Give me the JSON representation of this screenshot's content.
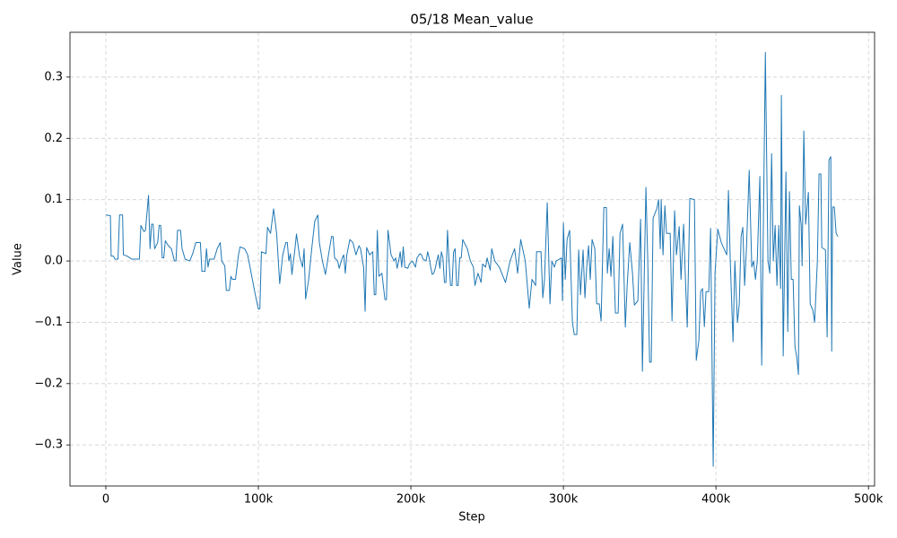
{
  "chart_data": {
    "type": "line",
    "title": "05/18  Mean_value",
    "x_label": "Step",
    "y_label": "Value",
    "xlim": [
      -23500,
      504000
    ],
    "ylim": [
      -0.367,
      0.373
    ],
    "xticks": [
      {
        "value": 0,
        "label": "0"
      },
      {
        "value": 100000,
        "label": "100k"
      },
      {
        "value": 200000,
        "label": "200k"
      },
      {
        "value": 300000,
        "label": "300k"
      },
      {
        "value": 400000,
        "label": "400k"
      },
      {
        "value": 500000,
        "label": "500k"
      }
    ],
    "yticks": [
      {
        "value": -0.3,
        "label": "−0.3"
      },
      {
        "value": -0.2,
        "label": "−0.2"
      },
      {
        "value": -0.1,
        "label": "−0.1"
      },
      {
        "value": 0,
        "label": "0.0"
      },
      0.1,
      0.2,
      0.3
    ],
    "grid": true,
    "x": [
      0,
      3000,
      3500,
      5000,
      6000,
      8000,
      9000,
      11000,
      11500,
      14000,
      17000,
      22000,
      23000,
      25000,
      26000,
      28000,
      29000,
      30000,
      31000,
      32000,
      34000,
      35000,
      36000,
      37000,
      38000,
      39000,
      41000,
      43000,
      45000,
      46000,
      47000,
      49000,
      50000,
      52000,
      55000,
      57000,
      59000,
      62000,
      63000,
      65000,
      66000,
      67000,
      68000,
      71000,
      73000,
      75000,
      76000,
      78000,
      79000,
      81000,
      82000,
      83000,
      85000,
      87000,
      88000,
      91000,
      93000,
      98000,
      100000,
      101000,
      102000,
      105000,
      106000,
      108000,
      110000,
      112000,
      114000,
      116000,
      118000,
      119000,
      120000,
      121000,
      122000,
      124000,
      125000,
      127000,
      129000,
      130000,
      131000,
      133000,
      135000,
      137000,
      139000,
      140000,
      142000,
      144000,
      146000,
      148000,
      149000,
      150000,
      152000,
      153000,
      155000,
      156000,
      157000,
      158000,
      160000,
      162000,
      164000,
      166000,
      167000,
      169000,
      170000,
      171000,
      173000,
      175000,
      176000,
      177000,
      178000,
      179000,
      181000,
      183000,
      184000,
      185000,
      187000,
      189000,
      190000,
      191000,
      192000,
      193000,
      194000,
      195000,
      196000,
      198000,
      199000,
      201000,
      203000,
      204000,
      206000,
      207000,
      208000,
      210000,
      211000,
      212000,
      213000,
      214000,
      215000,
      216000,
      217000,
      218000,
      219000,
      220000,
      221000,
      222000,
      223000,
      224000,
      225000,
      226000,
      227000,
      228000,
      229000,
      230000,
      231000,
      232000,
      233000,
      234000,
      235000,
      237000,
      239000,
      241000,
      242000,
      244000,
      246000,
      247000,
      249000,
      250000,
      252000,
      253000,
      255000,
      258000,
      262000,
      265000,
      268000,
      270000,
      272000,
      275000,
      277600,
      279400,
      281800,
      282400,
      285300,
      286500,
      287600,
      289400,
      291200,
      292400,
      294100,
      295300,
      298800,
      299400,
      300000,
      301200,
      302400,
      304100,
      305900,
      307100,
      308800,
      310000,
      311200,
      312900,
      314100,
      315300,
      316500,
      317600,
      318800,
      320600,
      321800,
      323500,
      324700,
      326500,
      328200,
      328800,
      330000,
      331200,
      332400,
      334100,
      335900,
      337100,
      338800,
      340600,
      341800,
      343500,
      345300,
      346500,
      348800,
      350600,
      351800,
      354100,
      355300,
      356500,
      357600,
      358800,
      361200,
      362400,
      363500,
      364100,
      365300,
      366500,
      367600,
      370000,
      371200,
      372900,
      374100,
      375900,
      377100,
      378800,
      380000,
      381200,
      382900,
      385900,
      387100,
      388800,
      390000,
      391200,
      392400,
      393500,
      395300,
      396500,
      398200,
      399400,
      401200,
      403500,
      407100,
      408200,
      409400,
      411200,
      412400,
      414100,
      415300,
      416500,
      417600,
      418800,
      420000,
      421800,
      423500,
      424700,
      425900,
      427100,
      428800,
      430000,
      431200,
      432400,
      434100,
      435300,
      436500,
      437600,
      438800,
      440000,
      441200,
      442400,
      442900,
      444100,
      445900,
      447100,
      448200,
      449400,
      450600,
      451800,
      452900,
      454100,
      454700,
      455900,
      456500,
      457600,
      458800,
      460600,
      461800,
      463500,
      464700,
      466500,
      467600,
      468800,
      469400,
      470600,
      471800,
      472900,
      474100,
      475300,
      475900,
      476500,
      477600,
      478800,
      480000
    ],
    "series": [
      {
        "color": "#1f77b4",
        "values": [
          0.075,
          0.074,
          0.008,
          0.008,
          0.003,
          0.003,
          0.075,
          0.075,
          0.01,
          0.008,
          0.003,
          0.003,
          0.058,
          0.048,
          0.05,
          0.107,
          0.02,
          0.06,
          0.06,
          0.02,
          0.03,
          0.058,
          0.058,
          0.005,
          0.005,
          0.033,
          0.025,
          0.02,
          0.0,
          0.0,
          0.05,
          0.05,
          0.02,
          0.003,
          0.0,
          0.012,
          0.03,
          0.03,
          -0.017,
          -0.017,
          0.02,
          -0.01,
          0.003,
          0.003,
          0.02,
          0.03,
          0.0,
          -0.008,
          -0.048,
          -0.048,
          -0.025,
          -0.03,
          -0.03,
          0.01,
          0.023,
          0.02,
          0.01,
          -0.055,
          -0.078,
          -0.078,
          0.015,
          0.012,
          0.055,
          0.045,
          0.085,
          0.045,
          -0.037,
          0.01,
          0.03,
          0.03,
          0.0,
          0.012,
          -0.022,
          0.02,
          0.044,
          0.008,
          -0.01,
          0.02,
          -0.062,
          -0.03,
          0.02,
          0.065,
          0.075,
          0.03,
          0.0,
          -0.022,
          0.01,
          0.04,
          0.04,
          0.005,
          0.0,
          -0.012,
          0.005,
          0.01,
          -0.02,
          0.01,
          0.035,
          0.03,
          0.01,
          0.025,
          0.02,
          -0.01,
          -0.082,
          0.022,
          0.01,
          0.015,
          -0.055,
          -0.055,
          0.05,
          -0.025,
          -0.02,
          -0.063,
          -0.063,
          0.05,
          0.01,
          0.0,
          0.005,
          -0.012,
          0.0,
          0.015,
          -0.01,
          0.023,
          -0.01,
          -0.012,
          -0.005,
          0.0,
          -0.01,
          0.005,
          0.012,
          0.01,
          0.003,
          0.0,
          0.015,
          0.005,
          -0.01,
          -0.022,
          -0.02,
          -0.012,
          0.0,
          0.01,
          -0.012,
          0.015,
          0.005,
          -0.035,
          -0.035,
          0.05,
          0.0,
          -0.04,
          -0.04,
          0.015,
          0.02,
          -0.04,
          -0.04,
          0.005,
          0.005,
          0.035,
          0.03,
          0.02,
          0.0,
          -0.01,
          -0.04,
          -0.02,
          -0.035,
          -0.005,
          -0.01,
          0.005,
          -0.015,
          0.02,
          0.0,
          -0.01,
          -0.035,
          0.0,
          0.02,
          -0.02,
          0.035,
          0.0,
          -0.077,
          -0.03,
          -0.04,
          0.015,
          0.015,
          -0.06,
          -0.03,
          0.095,
          -0.07,
          0.0,
          -0.01,
          0.0,
          0.005,
          -0.065,
          0.062,
          -0.03,
          0.035,
          0.05,
          -0.1,
          -0.12,
          -0.12,
          0.018,
          -0.055,
          0.018,
          -0.06,
          -0.01,
          0.025,
          -0.03,
          0.035,
          0.02,
          -0.07,
          -0.07,
          -0.098,
          0.087,
          0.087,
          -0.02,
          0.02,
          -0.025,
          0.04,
          -0.085,
          -0.085,
          0.045,
          0.06,
          -0.108,
          -0.04,
          0.03,
          -0.02,
          -0.072,
          -0.065,
          0.068,
          -0.18,
          0.12,
          0.0,
          -0.165,
          -0.165,
          0.07,
          0.085,
          0.1,
          0.02,
          0.1,
          0.01,
          0.09,
          0.045,
          0.045,
          -0.098,
          0.082,
          0.01,
          0.056,
          -0.03,
          0.06,
          -0.03,
          -0.108,
          0.102,
          0.1,
          -0.162,
          -0.13,
          -0.05,
          -0.045,
          -0.107,
          -0.05,
          -0.05,
          0.053,
          -0.335,
          -0.02,
          0.052,
          0.03,
          0.01,
          0.115,
          0.0,
          -0.132,
          0.0,
          -0.1,
          -0.07,
          0.04,
          0.055,
          -0.04,
          0.02,
          0.148,
          -0.01,
          0.0,
          -0.03,
          0.0,
          0.138,
          -0.17,
          0.08,
          0.34,
          0.0,
          -0.02,
          0.175,
          0.0,
          0.058,
          -0.04,
          0.058,
          -0.045,
          0.27,
          -0.155,
          0.145,
          -0.115,
          0.113,
          -0.03,
          -0.03,
          -0.14,
          -0.155,
          -0.185,
          0.09,
          0.058,
          -0.008,
          0.212,
          0.06,
          0.112,
          -0.07,
          -0.08,
          -0.1,
          0.0,
          0.142,
          0.142,
          0.022,
          0.02,
          0.018,
          -0.124,
          0.165,
          0.17,
          -0.147,
          0.088,
          0.088,
          0.045,
          0.04
        ]
      }
    ]
  }
}
